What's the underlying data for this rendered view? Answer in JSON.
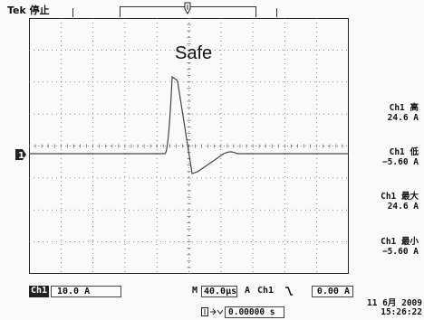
{
  "header": {
    "brand": "Tek",
    "run_state": "停止"
  },
  "overlay": {
    "label": "Safe"
  },
  "colors": {
    "trace": "#444444",
    "grid": "#6a6a6a",
    "background": "#fafafa"
  },
  "measurements": [
    {
      "label": "Ch1 高",
      "value": "24.6 A"
    },
    {
      "label": "Ch1 低",
      "value": "−5.60 A"
    },
    {
      "label": "Ch1 最大",
      "value": "24.6 A"
    },
    {
      "label": "Ch1 最小",
      "value": "−5.60 A"
    }
  ],
  "channel": {
    "tag": "Ch1",
    "scale": "10.0 A",
    "marker": "1"
  },
  "timebase": {
    "tag": "M",
    "value": "40.0µs"
  },
  "trigger": {
    "mode": "A",
    "source": "Ch1",
    "slope": "⌄",
    "level": "0.00 A"
  },
  "horizontal_position": {
    "icon": "horizontal-position-icon",
    "value": "0.00000 s"
  },
  "datetime": {
    "date": "11 6月  2009",
    "time": "15:26:22"
  }
}
